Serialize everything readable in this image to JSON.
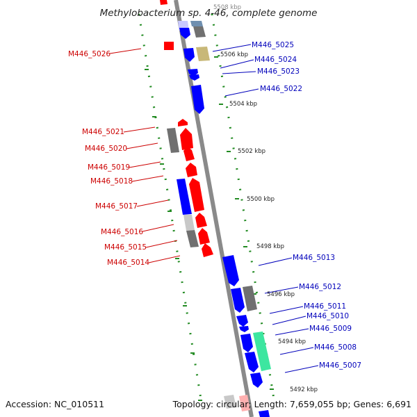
{
  "title": "Methylobacterium sp. 4-46, complete genome",
  "footer": {
    "accession": "Accession: NC_010511",
    "summary": "Topology: circular; Length: 7,659,055 bp; Genes: 6,691"
  },
  "colors": {
    "backbone": "#8a8a8a",
    "tick": "#228b22",
    "red": "#ff0000",
    "blue": "#0000ff",
    "grey": "#707070",
    "light_grey": "#c8c8c8",
    "olive": "#c8b878",
    "green": "#3de6a0",
    "label_red": "#cc0000",
    "label_blue": "#0000bb"
  },
  "scale_labels": [
    {
      "id": "kbp-5508",
      "text": "5508 kbp"
    },
    {
      "id": "kbp-5506",
      "text": "5506 kbp"
    },
    {
      "id": "kbp-5504",
      "text": "5504 kbp"
    },
    {
      "id": "kbp-5502",
      "text": "5502 kbp"
    },
    {
      "id": "kbp-5500",
      "text": "5500 kbp"
    },
    {
      "id": "kbp-5498",
      "text": "5498 kbp"
    },
    {
      "id": "kbp-5496",
      "text": "5496 kbp"
    },
    {
      "id": "kbp-5494",
      "text": "5494 kbp"
    },
    {
      "id": "kbp-5492",
      "text": "5492 kbp"
    }
  ],
  "gene_labels": {
    "left": [
      {
        "id": "M446_5026",
        "text": "M446_5026"
      },
      {
        "id": "M446_5021",
        "text": "M446_5021"
      },
      {
        "id": "M446_5020",
        "text": "M446_5020"
      },
      {
        "id": "M446_5019",
        "text": "M446_5019"
      },
      {
        "id": "M446_5018",
        "text": "M446_5018"
      },
      {
        "id": "M446_5017",
        "text": "M446_5017"
      },
      {
        "id": "M446_5016",
        "text": "M446_5016"
      },
      {
        "id": "M446_5015",
        "text": "M446_5015"
      },
      {
        "id": "M446_5014",
        "text": "M446_5014"
      }
    ],
    "right": [
      {
        "id": "M446_5025",
        "text": "M446_5025"
      },
      {
        "id": "M446_5024",
        "text": "M446_5024"
      },
      {
        "id": "M446_5023",
        "text": "M446_5023"
      },
      {
        "id": "M446_5022",
        "text": "M446_5022"
      },
      {
        "id": "M446_5013",
        "text": "M446_5013"
      },
      {
        "id": "M446_5012",
        "text": "M446_5012"
      },
      {
        "id": "M446_5011",
        "text": "M446_5011"
      },
      {
        "id": "M446_5010",
        "text": "M446_5010"
      },
      {
        "id": "M446_5009",
        "text": "M446_5009"
      },
      {
        "id": "M446_5008",
        "text": "M446_5008"
      },
      {
        "id": "M446_5007",
        "text": "M446_5007"
      }
    ]
  }
}
